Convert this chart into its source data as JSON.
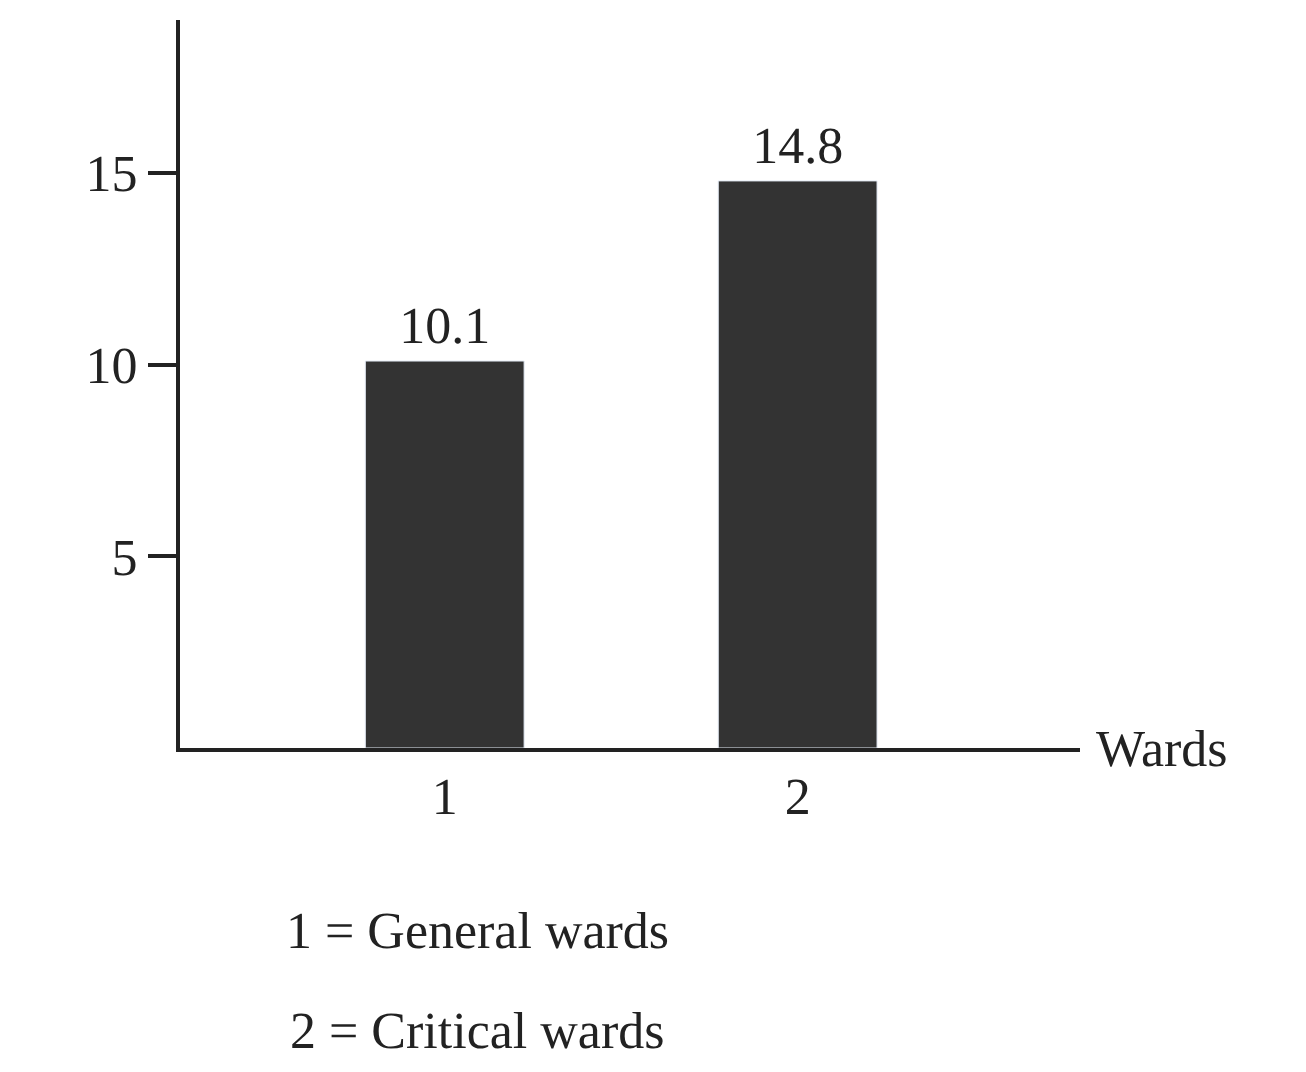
{
  "chart_data": {
    "type": "bar",
    "xlabel": "Wards",
    "categories": [
      "1",
      "2"
    ],
    "values": [
      10.1,
      14.8
    ],
    "color": "#333333",
    "ylim": [
      0,
      19
    ],
    "yticks": [
      5,
      10,
      15
    ],
    "data_labels": true,
    "annotations": [
      "1 = General wards",
      "2 = Critical wards"
    ]
  }
}
